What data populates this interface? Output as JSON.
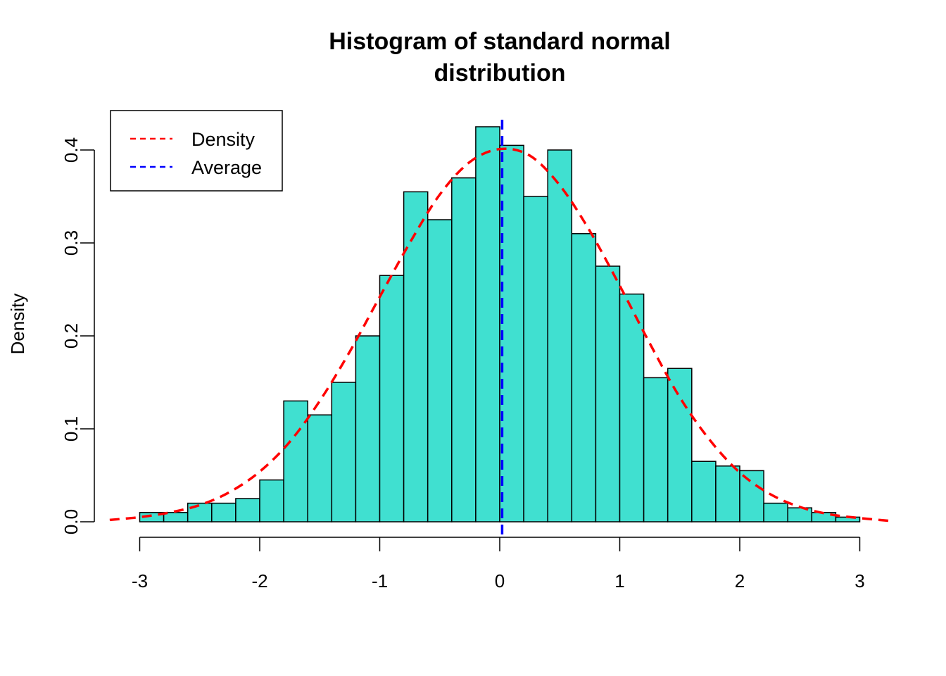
{
  "chart_data": {
    "type": "bar",
    "title_lines": [
      "Histogram of standard normal",
      "distribution"
    ],
    "xlabel": "",
    "ylabel": "Density",
    "xlim": [
      -3.3,
      3.3
    ],
    "ylim": [
      0,
      0.43
    ],
    "x_ticks": [
      -3,
      -2,
      -1,
      0,
      1,
      2,
      3
    ],
    "y_ticks": [
      0.0,
      0.1,
      0.2,
      0.3,
      0.4
    ],
    "y_tick_labels": [
      "0.0",
      "0.1",
      "0.2",
      "0.3",
      "0.4"
    ],
    "bar_color": "#40E0D0",
    "bins": [
      {
        "start": -3.0,
        "end": -2.8,
        "density": 0.01
      },
      {
        "start": -2.8,
        "end": -2.6,
        "density": 0.01
      },
      {
        "start": -2.6,
        "end": -2.4,
        "density": 0.02
      },
      {
        "start": -2.4,
        "end": -2.2,
        "density": 0.02
      },
      {
        "start": -2.2,
        "end": -2.0,
        "density": 0.025
      },
      {
        "start": -2.0,
        "end": -1.8,
        "density": 0.045
      },
      {
        "start": -1.8,
        "end": -1.6,
        "density": 0.13
      },
      {
        "start": -1.6,
        "end": -1.4,
        "density": 0.115
      },
      {
        "start": -1.4,
        "end": -1.2,
        "density": 0.15
      },
      {
        "start": -1.2,
        "end": -1.0,
        "density": 0.2
      },
      {
        "start": -1.0,
        "end": -0.8,
        "density": 0.265
      },
      {
        "start": -0.8,
        "end": -0.6,
        "density": 0.355
      },
      {
        "start": -0.6,
        "end": -0.4,
        "density": 0.325
      },
      {
        "start": -0.4,
        "end": -0.2,
        "density": 0.37
      },
      {
        "start": -0.2,
        "end": 0.0,
        "density": 0.425
      },
      {
        "start": 0.0,
        "end": 0.2,
        "density": 0.405
      },
      {
        "start": 0.2,
        "end": 0.4,
        "density": 0.35
      },
      {
        "start": 0.4,
        "end": 0.6,
        "density": 0.4
      },
      {
        "start": 0.6,
        "end": 0.8,
        "density": 0.31
      },
      {
        "start": 0.8,
        "end": 1.0,
        "density": 0.275
      },
      {
        "start": 1.0,
        "end": 1.2,
        "density": 0.245
      },
      {
        "start": 1.2,
        "end": 1.4,
        "density": 0.155
      },
      {
        "start": 1.4,
        "end": 1.6,
        "density": 0.165
      },
      {
        "start": 1.6,
        "end": 1.8,
        "density": 0.065
      },
      {
        "start": 1.8,
        "end": 2.0,
        "density": 0.06
      },
      {
        "start": 2.0,
        "end": 2.2,
        "density": 0.055
      },
      {
        "start": 2.2,
        "end": 2.4,
        "density": 0.02
      },
      {
        "start": 2.4,
        "end": 2.6,
        "density": 0.015
      },
      {
        "start": 2.6,
        "end": 2.8,
        "density": 0.01
      },
      {
        "start": 2.8,
        "end": 3.0,
        "density": 0.005
      }
    ],
    "density_curve": {
      "name": "Density",
      "color": "#FF0000",
      "x": [
        -3.25,
        -3.0,
        -2.75,
        -2.5,
        -2.25,
        -2.0,
        -1.75,
        -1.5,
        -1.25,
        -1.0,
        -0.75,
        -0.5,
        -0.25,
        0.0,
        0.25,
        0.5,
        0.75,
        1.0,
        1.25,
        1.5,
        1.75,
        2.0,
        2.25,
        2.5,
        2.75,
        3.0,
        3.25
      ],
      "y": [
        0.002,
        0.005,
        0.01,
        0.018,
        0.032,
        0.054,
        0.086,
        0.13,
        0.183,
        0.242,
        0.3,
        0.352,
        0.387,
        0.401,
        0.394,
        0.362,
        0.313,
        0.254,
        0.192,
        0.134,
        0.088,
        0.053,
        0.03,
        0.016,
        0.008,
        0.004,
        0.001
      ]
    },
    "average_line": {
      "name": "Average",
      "color": "#0000FF",
      "x": 0.02
    },
    "legend": {
      "position": "top-left",
      "entries": [
        {
          "label": "Density",
          "color": "#FF0000"
        },
        {
          "label": "Average",
          "color": "#0000FF"
        }
      ]
    }
  }
}
